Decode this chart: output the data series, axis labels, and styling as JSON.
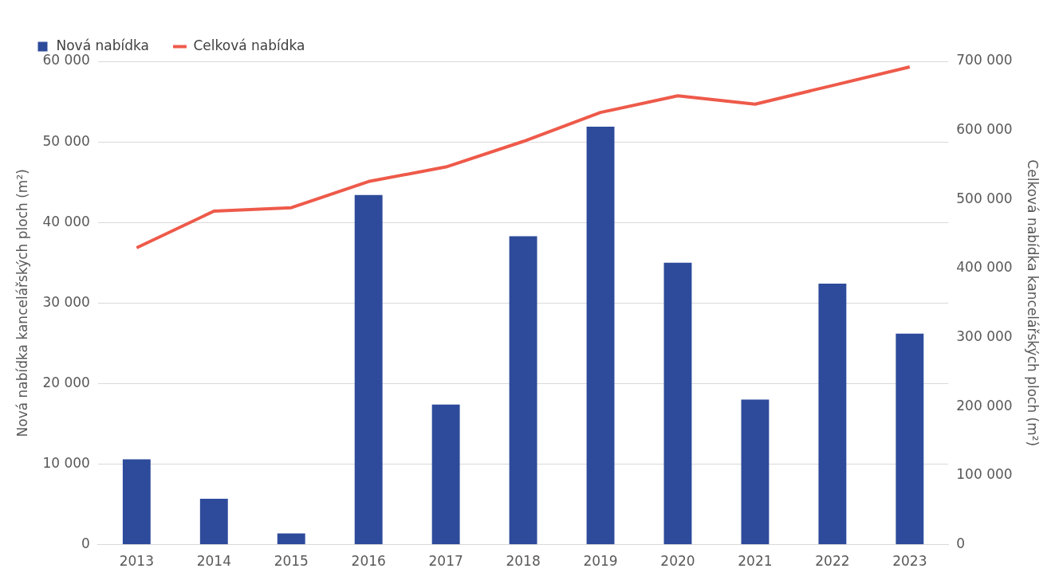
{
  "chart_data": {
    "type": "bar",
    "categories": [
      "2013",
      "2014",
      "2015",
      "2016",
      "2017",
      "2018",
      "2019",
      "2020",
      "2021",
      "2022",
      "2023"
    ],
    "ylabel": "Nová nabídka kancelářských ploch (m²)",
    "y2label": "Celková nabídka kancelářských ploch (m²)",
    "series": [
      {
        "name": "Nová nabídka",
        "color": "#2e4b9b",
        "values": [
          10600,
          5700,
          1400,
          43400,
          17400,
          38300,
          51900,
          35000,
          18000,
          32400,
          26200
        ]
      },
      {
        "name": "Celková nabídka",
        "type": "line",
        "axis": "y2",
        "color": "#ee5a4a",
        "values": [
          430000,
          483000,
          488000,
          526000,
          547000,
          584000,
          626000,
          650000,
          638000,
          665000,
          692000
        ]
      }
    ],
    "ylim": [
      0,
      60000
    ],
    "yticks": [
      {
        "value": 0,
        "label": "0"
      },
      {
        "value": 10000,
        "label": "10 000"
      },
      {
        "value": 20000,
        "label": "20 000"
      },
      {
        "value": 30000,
        "label": "30 000"
      },
      {
        "value": 40000,
        "label": "40 000"
      },
      {
        "value": 50000,
        "label": "50 000"
      },
      {
        "value": 60000,
        "label": "60 000"
      }
    ],
    "y2lim": [
      0,
      700000
    ],
    "y2ticks": [
      {
        "value": 0,
        "label": "0"
      },
      {
        "value": 100000,
        "label": "100 000"
      },
      {
        "value": 200000,
        "label": "200 000"
      },
      {
        "value": 300000,
        "label": "300 000"
      },
      {
        "value": 400000,
        "label": "400 000"
      },
      {
        "value": 500000,
        "label": "500 000"
      },
      {
        "value": 600000,
        "label": "600 000"
      },
      {
        "value": 700000,
        "label": "700 000"
      }
    ],
    "grid": "y",
    "legend": "top left",
    "marker": "none",
    "line_style": "solid"
  }
}
